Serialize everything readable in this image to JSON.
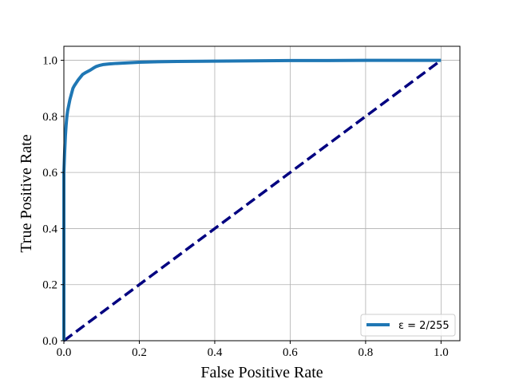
{
  "chart_data": {
    "type": "line",
    "title": "",
    "xlabel": "False Positive Rate",
    "ylabel": "True Positive Rate",
    "xlim": [
      0.0,
      1.05
    ],
    "ylim": [
      0.0,
      1.05
    ],
    "xticks": [
      "0.0",
      "0.2",
      "0.4",
      "0.6",
      "0.8",
      "1.0"
    ],
    "yticks": [
      "0.0",
      "0.2",
      "0.4",
      "0.6",
      "0.8",
      "1.0"
    ],
    "grid": true,
    "legend_position": "lower-right",
    "series": [
      {
        "name": "ε = 2/255",
        "color": "#1f77b4",
        "style": "solid",
        "x": [
          0.0,
          0.0,
          0.002,
          0.004,
          0.006,
          0.008,
          0.01,
          0.013,
          0.016,
          0.02,
          0.024,
          0.028,
          0.033,
          0.038,
          0.044,
          0.05,
          0.056,
          0.063,
          0.07,
          0.078,
          0.086,
          0.095,
          0.105,
          0.12,
          0.14,
          0.17,
          0.2,
          0.25,
          0.3,
          0.4,
          0.5,
          0.6,
          0.7,
          0.8,
          0.9,
          1.0
        ],
        "y": [
          0.0,
          0.6,
          0.67,
          0.73,
          0.77,
          0.8,
          0.82,
          0.84,
          0.86,
          0.88,
          0.9,
          0.91,
          0.92,
          0.93,
          0.94,
          0.95,
          0.955,
          0.96,
          0.965,
          0.972,
          0.978,
          0.982,
          0.985,
          0.987,
          0.989,
          0.991,
          0.993,
          0.995,
          0.996,
          0.997,
          0.998,
          0.999,
          0.999,
          1.0,
          1.0,
          1.0
        ]
      },
      {
        "name": "",
        "color": "#000080",
        "style": "dashed",
        "x": [
          0.0,
          1.0
        ],
        "y": [
          0.0,
          1.0
        ]
      }
    ]
  }
}
